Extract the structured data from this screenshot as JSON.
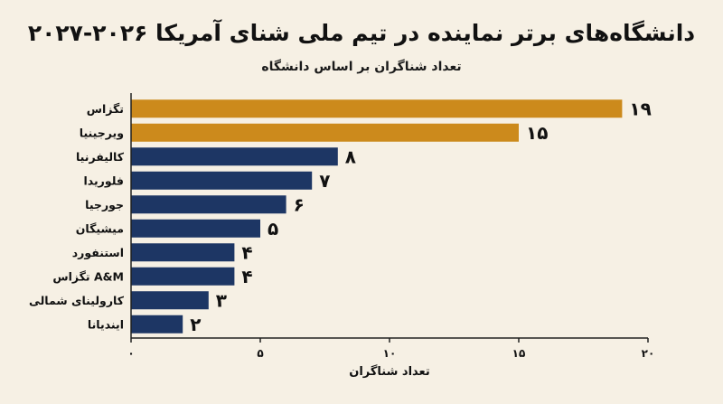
{
  "chart_data": {
    "type": "bar",
    "orientation": "horizontal",
    "title": "دانشگاه‌های برتر نماینده در تیم ملی شنای آمریکا ۲۰۲۶-۲۰۲۷",
    "subtitle": "تعداد شناگران بر اساس دانشگاه",
    "xlabel": "تعداد شناگران",
    "categories": [
      "تگزاس",
      "ویرجینیا",
      "کالیفرنیا",
      "فلوریدا",
      "جورجیا",
      "میشیگان",
      "استنفورد",
      "تگزاس A&M",
      "کارولینای شمالی",
      "ایندیانا"
    ],
    "values": [
      19,
      15,
      8,
      7,
      6,
      5,
      4,
      4,
      3,
      2
    ],
    "value_labels": [
      "۱۹",
      "۱۵",
      "۸",
      "۷",
      "۶",
      "۵",
      "۴",
      "۴",
      "۳",
      "۲"
    ],
    "xlim": [
      0,
      20
    ],
    "x_ticks": [
      0,
      5,
      10,
      15,
      20
    ],
    "x_tick_labels": [
      "۰",
      "۵",
      "۱۰",
      "۱۵",
      "۲۰"
    ],
    "bar_colors": [
      "#cc8a1c",
      "#cc8a1c",
      "#1d3664",
      "#1d3664",
      "#1d3664",
      "#1d3664",
      "#1d3664",
      "#1d3664",
      "#1d3664",
      "#1d3664"
    ],
    "grid": false
  }
}
